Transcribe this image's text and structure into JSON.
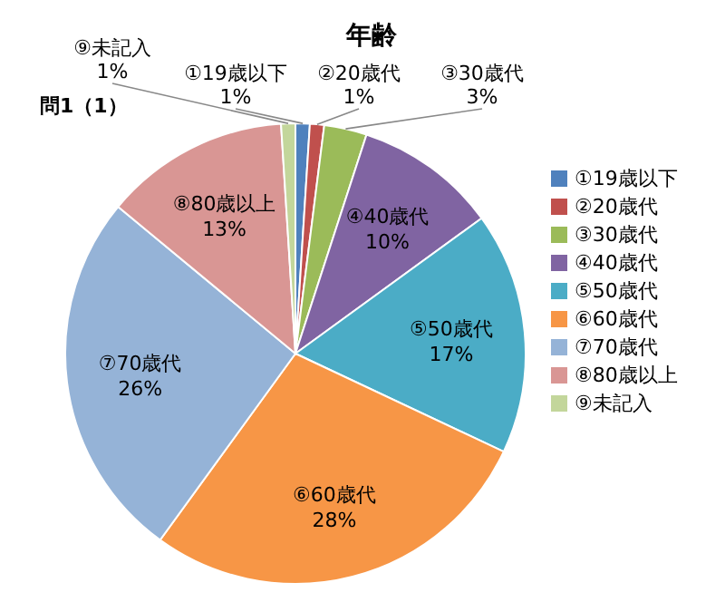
{
  "chart_data": {
    "type": "pie",
    "title": "年齢",
    "annotations": [
      "問1（1）"
    ],
    "categories": [
      "①19歳以下",
      "②20歳代",
      "③30歳代",
      "④40歳代",
      "⑤50歳代",
      "⑥60歳代",
      "⑦70歳代",
      "⑧80歳以上",
      "⑨未記入"
    ],
    "values": [
      1,
      1,
      3,
      10,
      17,
      28,
      26,
      13,
      1
    ],
    "colors": [
      "#4f81bd",
      "#c0504d",
      "#9bbb59",
      "#8064a2",
      "#4bacc6",
      "#f79646",
      "#95b3d7",
      "#d99694",
      "#c3d69b"
    ],
    "value_labels": [
      "1%",
      "1%",
      "3%",
      "10%",
      "17%",
      "28%",
      "26%",
      "13%",
      "1%"
    ],
    "legend": "right"
  }
}
